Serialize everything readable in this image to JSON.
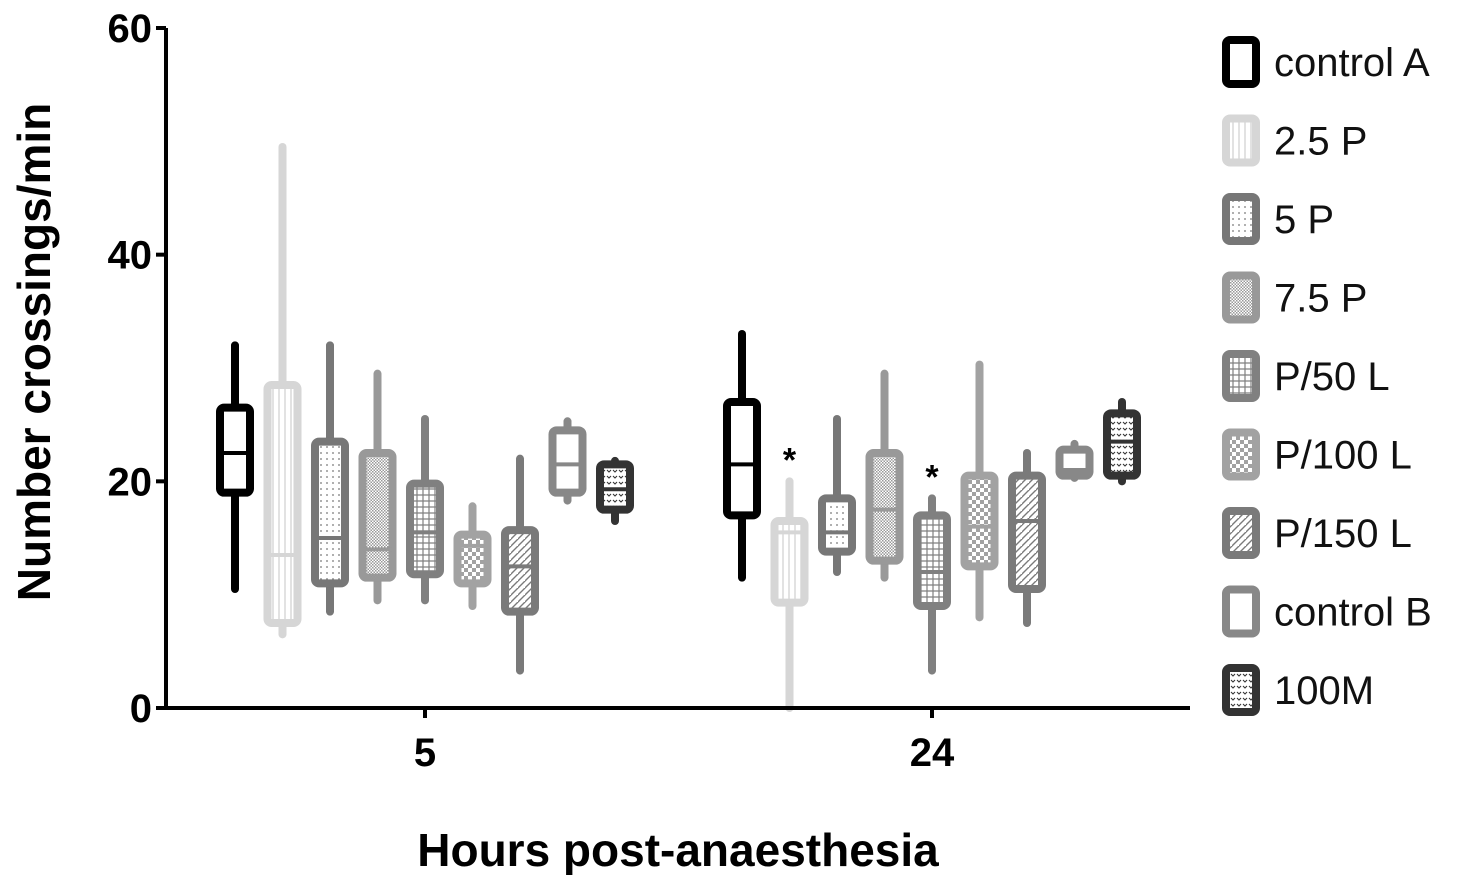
{
  "chart_data": {
    "type": "boxplot",
    "xlabel": "Hours post-anaesthesia",
    "ylabel": "Number crossings/min",
    "ylim": [
      0,
      60
    ],
    "yticks": [
      "0",
      "20",
      "40",
      "60"
    ],
    "categories": [
      "5",
      "24"
    ],
    "grid": false,
    "legend_position": "right",
    "series": [
      {
        "name": "control A",
        "color": "#000000",
        "fill": "none",
        "data": [
          {
            "min": 10.5,
            "q1": 19,
            "median": 22.5,
            "q3": 26.5,
            "max": 32
          },
          {
            "min": 11.5,
            "q1": 17,
            "median": 21.5,
            "q3": 27,
            "max": 33
          }
        ]
      },
      {
        "name": "2.5 P",
        "color": "#d6d6d6",
        "fill": "vlines",
        "data": [
          {
            "min": 6.5,
            "q1": 7.5,
            "median": 13.5,
            "q3": 28.5,
            "max": 49.5
          },
          {
            "min": 0,
            "q1": 9.3,
            "median": 15.5,
            "q3": 16.5,
            "max": 20
          }
        ]
      },
      {
        "name": "5 P",
        "color": "#777777",
        "fill": "dots",
        "data": [
          {
            "min": 8.5,
            "q1": 11,
            "median": 15,
            "q3": 23.5,
            "max": 32
          },
          {
            "min": 12,
            "q1": 13.8,
            "median": 15.5,
            "q3": 18.5,
            "max": 25.5
          }
        ]
      },
      {
        "name": "7.5 P",
        "color": "#999999",
        "fill": "dense-dots",
        "data": [
          {
            "min": 9.5,
            "q1": 11.5,
            "median": 14,
            "q3": 22.5,
            "max": 29.5
          },
          {
            "min": 11.5,
            "q1": 13,
            "median": 17.5,
            "q3": 22.5,
            "max": 29.5
          }
        ]
      },
      {
        "name": "P/50 L",
        "color": "#808080",
        "fill": "grid",
        "data": [
          {
            "min": 9.5,
            "q1": 11.8,
            "median": 15.5,
            "q3": 19.8,
            "max": 25.5
          },
          {
            "min": 3.3,
            "q1": 9,
            "median": 12,
            "q3": 17,
            "max": 18.5
          }
        ]
      },
      {
        "name": "P/100 L",
        "color": "#a2a2a2",
        "fill": "checker",
        "data": [
          {
            "min": 9,
            "q1": 11,
            "median": 14.3,
            "q3": 15.3,
            "max": 17.8
          },
          {
            "min": 8,
            "q1": 12.5,
            "median": 16,
            "q3": 20.5,
            "max": 30.3
          }
        ]
      },
      {
        "name": "P/150 L",
        "color": "#7a7a7a",
        "fill": "diagonal",
        "data": [
          {
            "min": 3.3,
            "q1": 8.5,
            "median": 12.5,
            "q3": 15.7,
            "max": 22
          },
          {
            "min": 7.5,
            "q1": 10.5,
            "median": 16.5,
            "q3": 20.5,
            "max": 22.5
          }
        ]
      },
      {
        "name": "control B",
        "color": "#888888",
        "fill": "none",
        "data": [
          {
            "min": 18.3,
            "q1": 19,
            "median": 21.5,
            "q3": 24.5,
            "max": 25.3
          },
          {
            "min": 20.3,
            "q1": 20.5,
            "median": 21,
            "q3": 22.8,
            "max": 23.3
          }
        ]
      },
      {
        "name": "100M",
        "color": "#333333",
        "fill": "chevrons",
        "data": [
          {
            "min": 16.5,
            "q1": 17.5,
            "median": 19.3,
            "q3": 21.5,
            "max": 21.8
          },
          {
            "min": 20,
            "q1": 20.5,
            "median": 23.5,
            "q3": 26,
            "max": 27
          }
        ]
      }
    ],
    "annotations": [
      {
        "text": "*",
        "category": "24",
        "series": "2.5 P",
        "y": 23
      },
      {
        "text": "*",
        "category": "24",
        "series": "P/50 L",
        "y": 21.5
      }
    ]
  }
}
